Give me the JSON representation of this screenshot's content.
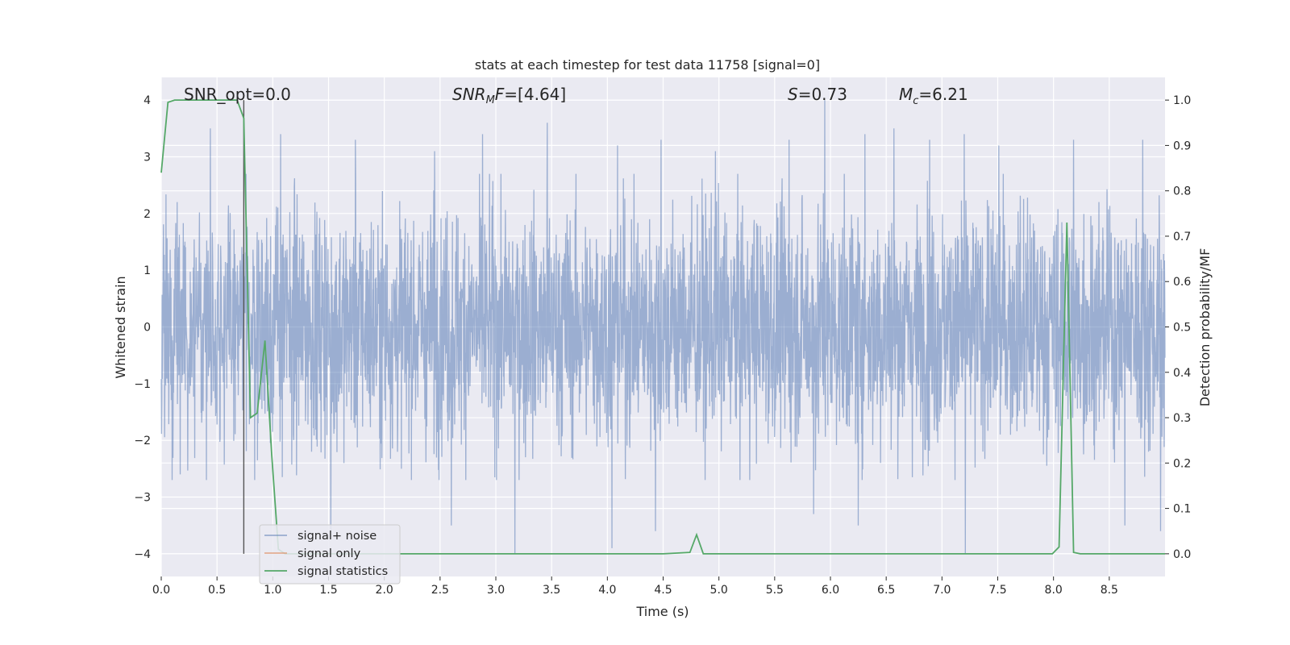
{
  "chart_data": {
    "type": "line",
    "title": "stats at each timestep for test data 11758 [signal=0]",
    "xlabel": "Time (s)",
    "ylabel_left": "Whitened strain",
    "ylabel_right": "Detection probability/MF",
    "xlim": [
      0.0,
      9.0
    ],
    "ylim_left": [
      -4.4,
      4.4
    ],
    "ylim_right": [
      -0.05,
      1.05
    ],
    "xticks": [
      0.0,
      0.5,
      1.0,
      1.5,
      2.0,
      2.5,
      3.0,
      3.5,
      4.0,
      4.5,
      5.0,
      5.5,
      6.0,
      6.5,
      7.0,
      7.5,
      8.0,
      8.5
    ],
    "xtick_labels": [
      "0.0",
      "0.5",
      "1.0",
      "1.5",
      "2.0",
      "2.5",
      "3.0",
      "3.5",
      "4.0",
      "4.5",
      "5.0",
      "5.5",
      "6.0",
      "6.5",
      "7.0",
      "7.5",
      "8.0",
      "8.5"
    ],
    "yticks_left": [
      -4,
      -3,
      -2,
      -1,
      0,
      1,
      2,
      3,
      4
    ],
    "ytick_labels_left": [
      "−4",
      "−3",
      "−2",
      "−1",
      "0",
      "1",
      "2",
      "3",
      "4"
    ],
    "yticks_right": [
      0.0,
      0.1,
      0.2,
      0.3,
      0.4,
      0.5,
      0.6,
      0.7,
      0.8,
      0.9,
      1.0
    ],
    "ytick_labels_right": [
      "0.0",
      "0.1",
      "0.2",
      "0.3",
      "0.4",
      "0.5",
      "0.6",
      "0.7",
      "0.8",
      "0.9",
      "1.0"
    ],
    "grid": true,
    "background": "#eaeaf2",
    "annotations": {
      "snr_opt": "SNR_opt=0.0",
      "snr_mf": "=[4.64]",
      "s_value": "=0.73",
      "mc_value": "=6.21"
    },
    "vertical_marker_x": 0.74,
    "legend": {
      "placement": "lower-left",
      "entries": [
        "signal+ noise",
        "signal only",
        "signal statistics"
      ]
    },
    "series": [
      {
        "name": "signal+ noise",
        "axis": "left",
        "color": "#4c72b0",
        "alpha": 0.5,
        "kind": "dense-noise",
        "t_start": 0.0,
        "t_end": 9.0,
        "typical_envelope": [
          -2.2,
          2.3
        ],
        "peaks": [
          {
            "x": 0.44,
            "y": 3.5
          },
          {
            "x": 1.07,
            "y": 3.4
          },
          {
            "x": 1.74,
            "y": 3.3
          },
          {
            "x": 2.45,
            "y": 3.1
          },
          {
            "x": 2.88,
            "y": 3.4
          },
          {
            "x": 3.46,
            "y": 3.6
          },
          {
            "x": 4.09,
            "y": 3.2
          },
          {
            "x": 4.48,
            "y": 3.3
          },
          {
            "x": 4.97,
            "y": 3.1
          },
          {
            "x": 5.63,
            "y": 3.3
          },
          {
            "x": 5.95,
            "y": 4.0
          },
          {
            "x": 6.31,
            "y": 3.4
          },
          {
            "x": 6.57,
            "y": 3.5
          },
          {
            "x": 6.89,
            "y": 3.3
          },
          {
            "x": 7.2,
            "y": 3.4
          },
          {
            "x": 7.51,
            "y": 3.2
          },
          {
            "x": 8.18,
            "y": 3.3
          },
          {
            "x": 8.8,
            "y": 3.3
          },
          {
            "x": 0.17,
            "y": -2.6
          },
          {
            "x": 1.52,
            "y": -3.7
          },
          {
            "x": 3.17,
            "y": -4.0
          },
          {
            "x": 2.6,
            "y": -3.5
          },
          {
            "x": 4.04,
            "y": -3.9
          },
          {
            "x": 4.43,
            "y": -3.6
          },
          {
            "x": 7.21,
            "y": -4.0
          },
          {
            "x": 8.64,
            "y": -3.5
          },
          {
            "x": 8.96,
            "y": -3.6
          },
          {
            "x": 5.85,
            "y": -3.3
          },
          {
            "x": 6.25,
            "y": -3.5
          }
        ]
      },
      {
        "name": "signal only",
        "axis": "left",
        "color": "#dd8452",
        "points": []
      },
      {
        "name": "signal statistics",
        "axis": "right",
        "color": "#55a868",
        "x": [
          0.0,
          0.06,
          0.12,
          0.18,
          0.25,
          0.31,
          0.37,
          0.43,
          0.49,
          0.55,
          0.62,
          0.68,
          0.74,
          0.8,
          0.86,
          0.93,
          0.99,
          1.05,
          1.11,
          1.17,
          1.5,
          2.0,
          2.5,
          3.0,
          3.5,
          4.0,
          4.5,
          4.74,
          4.8,
          4.86,
          5.0,
          5.5,
          6.0,
          6.5,
          7.0,
          7.5,
          7.99,
          8.05,
          8.12,
          8.18,
          8.24,
          8.5,
          9.0
        ],
        "y": [
          0.84,
          0.995,
          1.0,
          1.0,
          1.0,
          1.0,
          1.0,
          1.0,
          1.0,
          1.0,
          1.0,
          1.0,
          0.96,
          0.3,
          0.31,
          0.47,
          0.22,
          0.01,
          0.0,
          0.0,
          0.0,
          0.0,
          0.0,
          0.0,
          0.0,
          0.0,
          0.0,
          0.003,
          0.042,
          0.0,
          0.0,
          0.0,
          0.0,
          0.0,
          0.0,
          0.0,
          0.0,
          0.015,
          0.73,
          0.003,
          0.0,
          0.0,
          0.0
        ]
      }
    ]
  }
}
